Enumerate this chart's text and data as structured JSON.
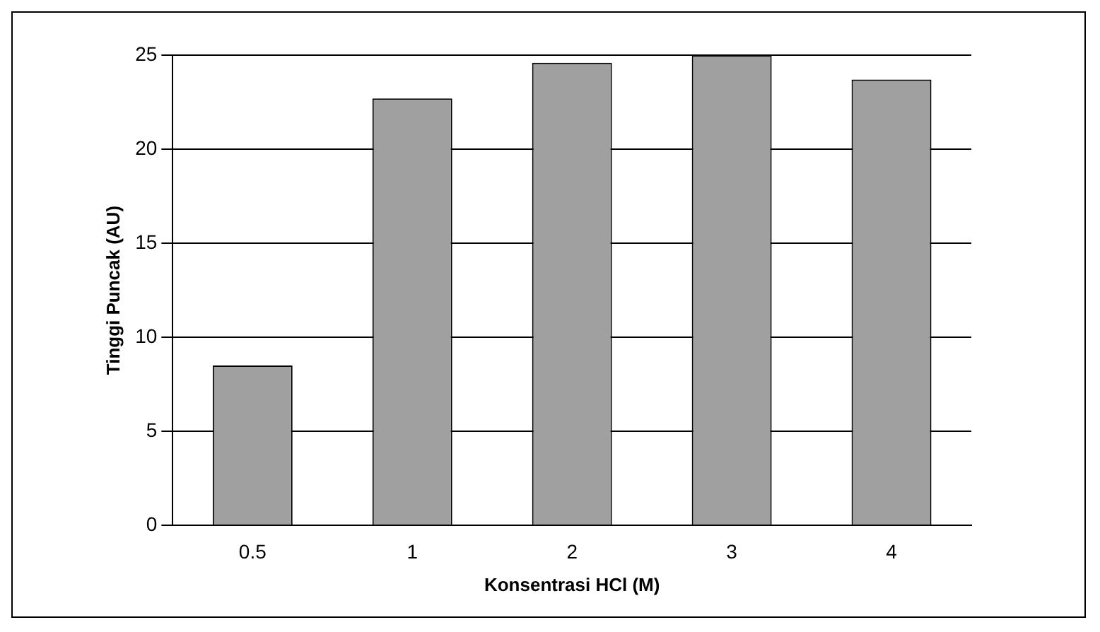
{
  "chart_data": {
    "type": "bar",
    "xlabel": "Konsentrasi HCl (M)",
    "ylabel": "Tinggi Puncak (AU)",
    "categories": [
      "0.5",
      "1",
      "2",
      "3",
      "4"
    ],
    "values": [
      8.5,
      22.7,
      24.6,
      25,
      23.7
    ],
    "color": "#a0a0a0",
    "ylim": [
      0,
      25
    ],
    "yticks": [
      0,
      5,
      10,
      15,
      20,
      25
    ],
    "grid": "y",
    "legend": false
  }
}
